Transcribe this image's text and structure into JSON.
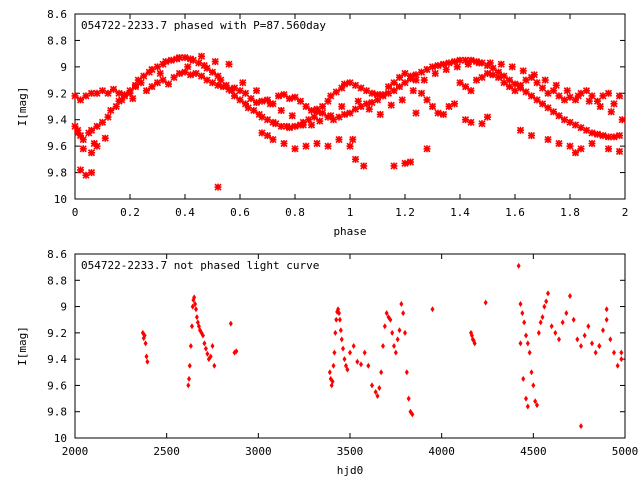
{
  "chart_data": [
    {
      "type": "scatter",
      "title": "054722-2233.7 phased with P=87.560day",
      "xlabel": "phase",
      "ylabel": "I[mag]",
      "xlim": [
        0,
        2
      ],
      "ylim": [
        10,
        8.6
      ],
      "y_inverted": true,
      "xticks": [
        "0",
        "0.2",
        "0.4",
        "0.6",
        "0.8",
        "1",
        "1.2",
        "1.4",
        "1.6",
        "1.8",
        "2"
      ],
      "yticks": [
        "8.6",
        "8.8",
        "9",
        "9.2",
        "9.4",
        "9.6",
        "9.8",
        "10"
      ],
      "marker_color": "#ff0000",
      "marker": "star",
      "series": [
        {
          "x": [
            0.01,
            0.02,
            0.03,
            0.05,
            0.06,
            0.08,
            0.1,
            0.12,
            0.13,
            0.15,
            0.16,
            0.18,
            0.2,
            0.22,
            0.23,
            0.25,
            0.27,
            0.28,
            0.3,
            0.32,
            0.33,
            0.35,
            0.37,
            0.38,
            0.4,
            0.42,
            0.43,
            0.45,
            0.47,
            0.48,
            0.5,
            0.52,
            0.53,
            0.55,
            0.57,
            0.58,
            0.6,
            0.62,
            0.63,
            0.65,
            0.67,
            0.68,
            0.7,
            0.72,
            0.73,
            0.75,
            0.77,
            0.78,
            0.8,
            0.82,
            0.83,
            0.85,
            0.87,
            0.88,
            0.9,
            0.92,
            0.93,
            0.95,
            0.97,
            0.98,
            1.0,
            1.02,
            1.04,
            1.06,
            1.08,
            1.1,
            1.12,
            1.14,
            1.16,
            1.18,
            1.2,
            1.22,
            1.24,
            1.26,
            1.28,
            1.3,
            1.32,
            1.34,
            1.36,
            1.38,
            1.4,
            1.42,
            1.44,
            1.46,
            1.48,
            1.5,
            1.52,
            1.54,
            1.56,
            1.58,
            1.6,
            1.62,
            1.64,
            1.66,
            1.68,
            1.7,
            1.72,
            1.74,
            1.76,
            1.78,
            1.8,
            1.82,
            1.84,
            1.86,
            1.88,
            1.9,
            1.92,
            1.94,
            1.96,
            1.98,
            0.0,
            0.02,
            0.04,
            0.06,
            0.08,
            0.1,
            0.12,
            0.14,
            0.16,
            0.18,
            0.2,
            0.22,
            0.24,
            0.26,
            0.28,
            0.3,
            0.32,
            0.34,
            0.36,
            0.38,
            0.4,
            0.42,
            0.44,
            0.46,
            0.48,
            0.5,
            0.52,
            0.54,
            0.56,
            0.58,
            0.6,
            0.62,
            0.64,
            0.66,
            0.68,
            0.7,
            0.72,
            0.74,
            0.76,
            0.78,
            0.8,
            0.82,
            0.84,
            0.86,
            0.88,
            0.9,
            0.92,
            0.94,
            0.96,
            0.98,
            1.0,
            1.02,
            1.04,
            1.06,
            1.08,
            1.1,
            1.12,
            1.14,
            1.16,
            1.18,
            1.2,
            1.22,
            1.24,
            1.26,
            1.28,
            1.3,
            1.32,
            1.34,
            1.36,
            1.38,
            1.4,
            1.42,
            1.44,
            1.46,
            1.48,
            1.5,
            1.52,
            1.54,
            1.56,
            1.58,
            1.6,
            1.62,
            1.64,
            1.66,
            1.68,
            1.7,
            1.72,
            1.74,
            1.76,
            1.78,
            1.8,
            1.82,
            1.84,
            1.86,
            1.88,
            1.9,
            1.92,
            1.94,
            1.96,
            1.98,
            0.02,
            0.04,
            0.06,
            0.08,
            0.06,
            0.52,
            0.68,
            0.7,
            0.72,
            0.76,
            0.8,
            0.84,
            0.88,
            0.92,
            0.96,
            1.02,
            1.05,
            1.16,
            1.2,
            1.22,
            1.24,
            1.28,
            1.42,
            1.44,
            1.48,
            1.5,
            1.62,
            1.66,
            1.72,
            1.76,
            1.8,
            1.82,
            1.84,
            1.88,
            1.94,
            1.98,
            1.0,
            1.01,
            0.0,
            0.01,
            0.03,
            0.07,
            0.11,
            0.17,
            0.21,
            0.31,
            0.41,
            0.46,
            0.51,
            0.56,
            0.61,
            0.66,
            0.71,
            0.75,
            0.79,
            0.83,
            0.86,
            0.89,
            0.93,
            0.97,
            1.03,
            1.07,
            1.11,
            1.15,
            1.19,
            1.23,
            1.27,
            1.31,
            1.35,
            1.39,
            1.43,
            1.47,
            1.51,
            1.55,
            1.59,
            1.63,
            1.67,
            1.71,
            1.75,
            1.79,
            1.83,
            1.87,
            1.91,
            1.95,
            1.99
          ],
          "y": [
            9.48,
            9.52,
            9.55,
            9.5,
            9.48,
            9.45,
            9.42,
            9.38,
            9.33,
            9.3,
            9.26,
            9.22,
            9.18,
            9.14,
            9.1,
            9.07,
            9.04,
            9.02,
            9.0,
            8.98,
            8.96,
            8.95,
            8.94,
            8.93,
            8.93,
            8.94,
            8.95,
            8.97,
            8.99,
            9.01,
            9.04,
            9.07,
            9.1,
            9.14,
            9.18,
            9.22,
            9.25,
            9.28,
            9.31,
            9.33,
            9.36,
            9.38,
            9.4,
            9.42,
            9.43,
            9.45,
            9.45,
            9.46,
            9.45,
            9.44,
            9.42,
            9.4,
            9.38,
            9.34,
            9.3,
            9.26,
            9.22,
            9.19,
            9.16,
            9.13,
            9.12,
            9.14,
            9.16,
            9.18,
            9.2,
            9.21,
            9.21,
            9.2,
            9.18,
            9.15,
            9.12,
            9.09,
            9.06,
            9.04,
            9.02,
            9.0,
            8.99,
            8.98,
            8.97,
            8.96,
            8.95,
            8.95,
            8.95,
            8.96,
            8.97,
            8.99,
            9.01,
            9.04,
            9.07,
            9.1,
            9.13,
            9.16,
            9.19,
            9.22,
            9.25,
            9.28,
            9.31,
            9.34,
            9.37,
            9.4,
            9.42,
            9.44,
            9.46,
            9.48,
            9.5,
            9.51,
            9.52,
            9.53,
            9.53,
            9.52,
            9.22,
            9.25,
            9.22,
            9.2,
            9.2,
            9.18,
            9.2,
            9.17,
            9.2,
            9.21,
            9.2,
            9.15,
            9.12,
            9.18,
            9.15,
            9.12,
            9.1,
            9.13,
            9.08,
            9.05,
            9.04,
            9.06,
            9.05,
            9.07,
            9.1,
            9.12,
            9.14,
            9.15,
            9.17,
            9.16,
            9.18,
            9.2,
            9.24,
            9.27,
            9.26,
            9.25,
            9.28,
            9.22,
            9.21,
            9.24,
            9.23,
            9.26,
            9.3,
            9.33,
            9.32,
            9.35,
            9.38,
            9.4,
            9.38,
            9.36,
            9.35,
            9.32,
            9.3,
            9.28,
            9.27,
            9.25,
            9.22,
            9.15,
            9.12,
            9.08,
            9.05,
            9.07,
            9.1,
            9.2,
            9.25,
            9.3,
            9.35,
            9.36,
            9.3,
            9.28,
            9.12,
            9.15,
            9.18,
            9.1,
            9.08,
            9.05,
            9.06,
            9.08,
            9.12,
            9.15,
            9.18,
            9.14,
            9.1,
            9.08,
            9.12,
            9.16,
            9.2,
            9.18,
            9.22,
            9.25,
            9.23,
            9.25,
            9.2,
            9.18,
            9.22,
            9.26,
            9.22,
            9.2,
            9.28,
            9.22,
            9.78,
            9.82,
            9.65,
            9.6,
            9.8,
            9.91,
            9.5,
            9.52,
            9.55,
            9.58,
            9.62,
            9.6,
            9.58,
            9.6,
            9.55,
            9.7,
            9.75,
            9.75,
            9.73,
            9.72,
            9.35,
            9.62,
            9.4,
            9.42,
            9.43,
            9.38,
            9.48,
            9.52,
            9.55,
            9.58,
            9.6,
            9.65,
            9.62,
            9.58,
            9.62,
            9.64,
            9.6,
            9.55,
            9.45,
            9.5,
            9.62,
            9.58,
            9.54,
            9.25,
            9.24,
            9.05,
            9.0,
            8.92,
            8.96,
            8.98,
            9.12,
            9.18,
            9.28,
            9.33,
            9.37,
            9.44,
            9.44,
            9.41,
            9.37,
            9.3,
            9.26,
            9.32,
            9.36,
            9.29,
            9.25,
            9.18,
            9.1,
            9.05,
            9.02,
            9.0,
            8.98,
            8.97,
            8.97,
            8.98,
            9.0,
            9.03,
            9.06,
            9.1,
            9.14,
            9.18,
            9.22,
            9.26,
            9.3,
            9.34,
            9.4
          ]
        }
      ]
    },
    {
      "type": "scatter",
      "title": "054722-2233.7 not phased light curve",
      "xlabel": "hjd0",
      "ylabel": "I[mag]",
      "xlim": [
        2000,
        5000
      ],
      "ylim": [
        10,
        8.6
      ],
      "y_inverted": true,
      "xticks": [
        "2000",
        "2500",
        "3000",
        "3500",
        "4000",
        "4500",
        "5000"
      ],
      "yticks": [
        "8.6",
        "8.8",
        "9",
        "9.2",
        "9.4",
        "9.6",
        "9.8",
        "10"
      ],
      "marker_color": "#ff0000",
      "marker": "diamond",
      "series": [
        {
          "x": [
            2370,
            2375,
            2380,
            2385,
            2390,
            2395,
            2618,
            2622,
            2626,
            2632,
            2638,
            2642,
            2646,
            2650,
            2655,
            2660,
            2665,
            2670,
            2676,
            2682,
            2690,
            2698,
            2706,
            2714,
            2722,
            2730,
            2740,
            2750,
            2760,
            2850,
            2870,
            2880,
            3390,
            3395,
            3400,
            3405,
            3410,
            3415,
            3420,
            3425,
            3430,
            3435,
            3440,
            3445,
            3450,
            3455,
            3462,
            3470,
            3478,
            3486,
            3500,
            3520,
            3540,
            3560,
            3580,
            3600,
            3620,
            3640,
            3650,
            3660,
            3670,
            3680,
            3690,
            3700,
            3710,
            3720,
            3730,
            3740,
            3750,
            3760,
            3770,
            3780,
            3790,
            3800,
            3810,
            3820,
            3830,
            3840,
            3950,
            4160,
            4165,
            4170,
            4175,
            4180,
            4240,
            4420,
            4430,
            4440,
            4450,
            4460,
            4470,
            4480,
            4490,
            4500,
            4510,
            4520,
            4530,
            4540,
            4550,
            4560,
            4570,
            4580,
            4600,
            4620,
            4640,
            4660,
            4680,
            4700,
            4720,
            4740,
            4760,
            4780,
            4800,
            4820,
            4840,
            4860,
            4880,
            4900,
            4920,
            4940,
            4960,
            4980,
            4430,
            4445,
            4460,
            4470,
            4760,
            4860,
            4900,
            4980
          ],
          "y": [
            9.2,
            9.24,
            9.22,
            9.28,
            9.38,
            9.42,
            9.6,
            9.55,
            9.45,
            9.3,
            9.15,
            9.0,
            8.95,
            8.93,
            8.98,
            9.02,
            9.08,
            9.12,
            9.15,
            9.18,
            9.2,
            9.22,
            9.28,
            9.32,
            9.36,
            9.4,
            9.38,
            9.3,
            9.45,
            9.13,
            9.35,
            9.34,
            9.5,
            9.55,
            9.6,
            9.57,
            9.45,
            9.35,
            9.2,
            9.1,
            9.04,
            9.02,
            9.05,
            9.1,
            9.18,
            9.25,
            9.32,
            9.4,
            9.45,
            9.48,
            9.35,
            9.3,
            9.42,
            9.44,
            9.35,
            9.45,
            9.6,
            9.65,
            9.68,
            9.62,
            9.5,
            9.3,
            9.15,
            9.05,
            9.08,
            9.1,
            9.2,
            9.3,
            9.35,
            9.25,
            9.18,
            8.98,
            9.05,
            9.2,
            9.5,
            9.7,
            9.8,
            9.82,
            9.02,
            9.2,
            9.22,
            9.25,
            9.26,
            9.28,
            8.97,
            8.69,
            8.98,
            9.05,
            9.12,
            9.22,
            9.28,
            9.35,
            9.5,
            9.6,
            9.72,
            9.75,
            9.2,
            9.12,
            9.08,
            9.0,
            8.96,
            8.9,
            9.15,
            9.2,
            9.25,
            9.12,
            9.05,
            8.92,
            9.1,
            9.25,
            9.3,
            9.22,
            9.15,
            9.28,
            9.35,
            9.3,
            9.18,
            9.1,
            9.25,
            9.35,
            9.45,
            9.4,
            9.28,
            9.55,
            9.7,
            9.76,
            9.91,
            9.3,
            9.02,
            9.35
          ]
        }
      ]
    }
  ]
}
